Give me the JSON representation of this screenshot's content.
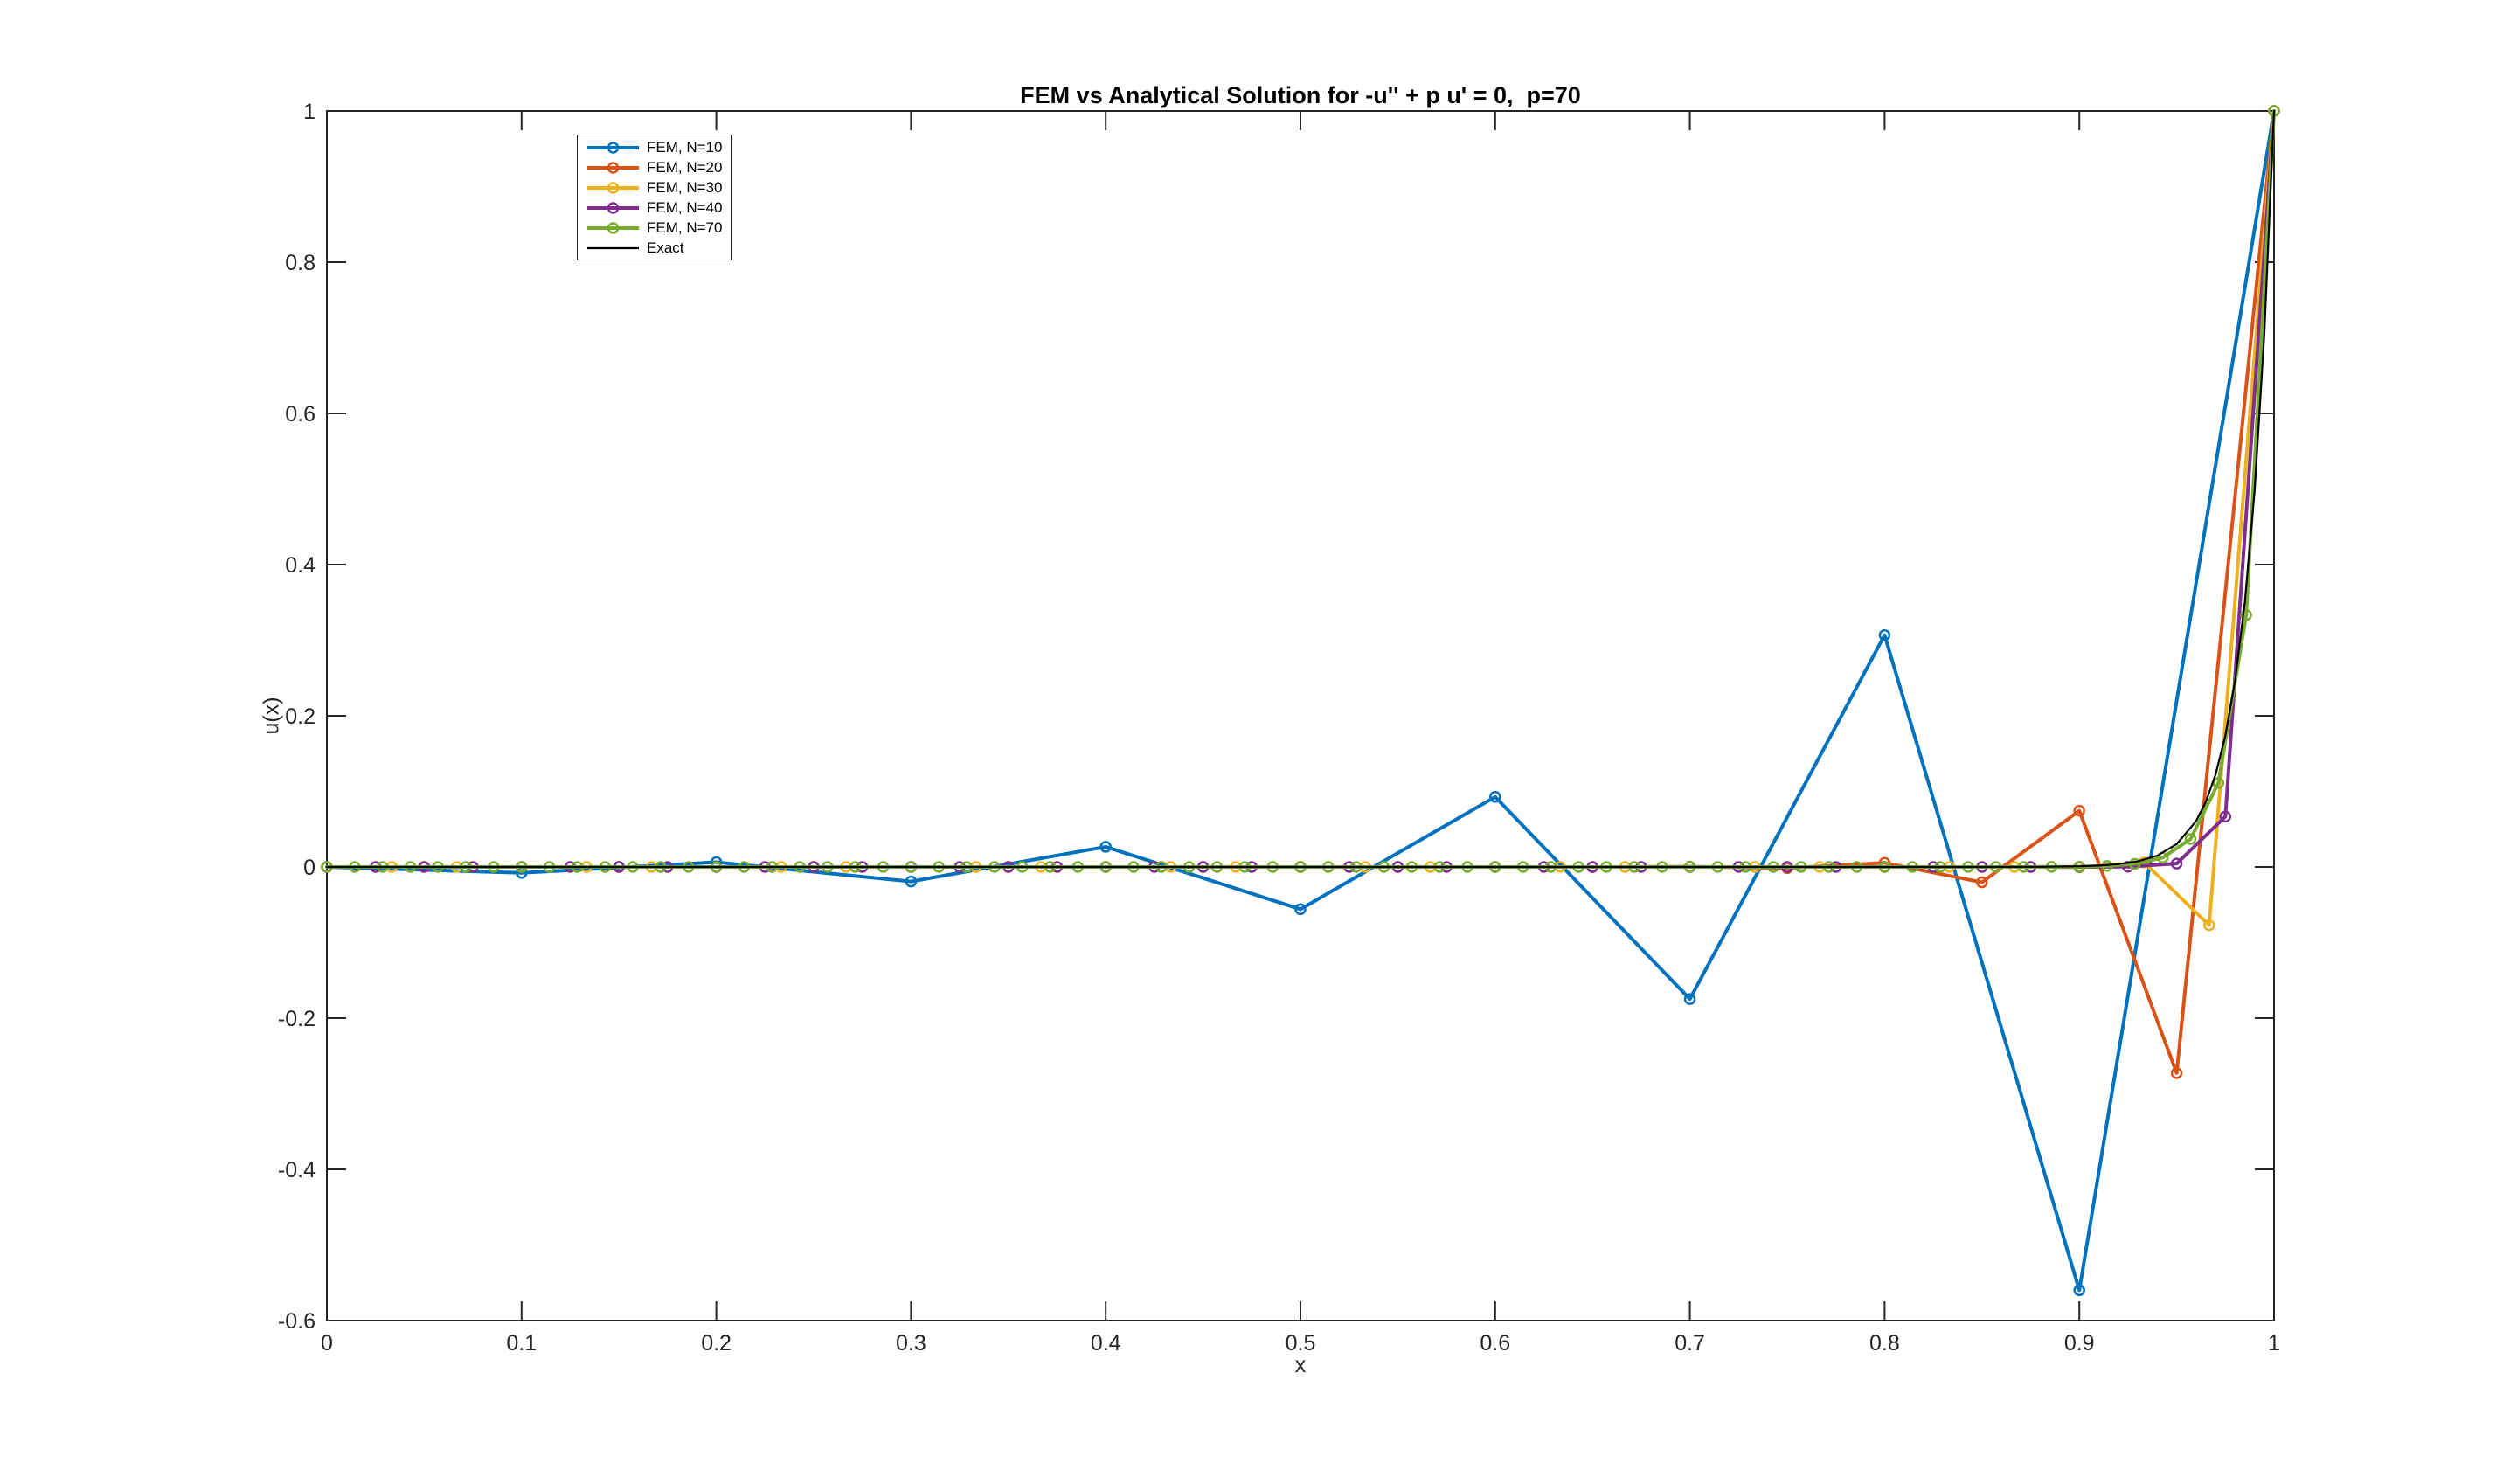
{
  "chart_data": {
    "type": "line",
    "title": "FEM vs Analytical Solution for -u'' + p u' = 0,  p=70",
    "xlabel": "x",
    "ylabel": "u(x)",
    "xlim": [
      0,
      1
    ],
    "ylim": [
      -0.6,
      1
    ],
    "grid": false,
    "legend_position": "northwest-inside",
    "axis_color": "#262626",
    "xticks": {
      "values": [
        0,
        0.1,
        0.2,
        0.3,
        0.4,
        0.5,
        0.6,
        0.7,
        0.8,
        0.9,
        1
      ],
      "labels": [
        "0",
        "0.1",
        "0.2",
        "0.3",
        "0.4",
        "0.5",
        "0.6",
        "0.7",
        "0.8",
        "0.9",
        "1"
      ]
    },
    "yticks": {
      "values": [
        -0.6,
        -0.4,
        -0.2,
        0,
        0.2,
        0.4,
        0.6,
        0.8,
        1
      ],
      "labels": [
        "-0.6",
        "-0.4",
        "-0.2",
        "0",
        "0.2",
        "0.4",
        "0.6",
        "0.8",
        "1"
      ]
    },
    "series": [
      {
        "name": "FEM, N=10",
        "color": "#0072BD",
        "marker": "circle",
        "line_width": 4,
        "x": [
          0,
          0.1,
          0.2,
          0.3,
          0.4,
          0.5,
          0.6,
          0.7,
          0.8,
          0.9,
          1
        ],
        "y": [
          0,
          -0.0078642,
          0.0062913,
          -0.0191885,
          0.0266751,
          -0.0558794,
          0.0927188,
          -0.1747576,
          0.3067002,
          -0.5599247,
          1
        ]
      },
      {
        "name": "FEM, N=20",
        "color": "#D95319",
        "marker": "circle",
        "line_width": 4,
        "x": [
          0,
          0.05,
          0.1,
          0.15,
          0.2,
          0.25,
          0.3,
          0.35,
          0.4,
          0.45,
          0.5,
          0.55,
          0.6,
          0.65,
          0.7,
          0.75,
          0.8,
          0.85,
          0.9,
          0.95,
          1
        ],
        "y": [
          0,
          0,
          0,
          0,
          0,
          0,
          0,
          0,
          0,
          -6e-07,
          2.3e-06,
          -8.3e-06,
          3.06e-05,
          -0.0001122,
          0.0004115,
          -0.0015089,
          0.0055324,
          -0.0202855,
          0.0743802,
          -0.2727273,
          1
        ]
      },
      {
        "name": "FEM, N=30",
        "color": "#EDB120",
        "marker": "circle",
        "line_width": 4,
        "x": [
          0,
          0.03333,
          0.06667,
          0.1,
          0.13333,
          0.16667,
          0.2,
          0.23333,
          0.26667,
          0.3,
          0.33333,
          0.36667,
          0.4,
          0.43333,
          0.46667,
          0.5,
          0.53333,
          0.56667,
          0.6,
          0.63333,
          0.66667,
          0.7,
          0.73333,
          0.76667,
          0.8,
          0.83333,
          0.86667,
          0.9,
          0.93333,
          0.96667,
          1
        ],
        "y": [
          0,
          0,
          0,
          0,
          0,
          0,
          0,
          0,
          0,
          0,
          0,
          0,
          0,
          0,
          0,
          0,
          0,
          0,
          0,
          0,
          0,
          0,
          0,
          0,
          0,
          -2.7e-06,
          3.5e-05,
          -0.0004551,
          0.0059172,
          -0.0769231,
          1
        ]
      },
      {
        "name": "FEM, N=40",
        "color": "#7E2F8E",
        "marker": "circle",
        "line_width": 4,
        "x": [
          0,
          0.025,
          0.05,
          0.075,
          0.1,
          0.125,
          0.15,
          0.175,
          0.2,
          0.225,
          0.25,
          0.275,
          0.3,
          0.325,
          0.35,
          0.375,
          0.4,
          0.425,
          0.45,
          0.475,
          0.5,
          0.525,
          0.55,
          0.575,
          0.6,
          0.625,
          0.65,
          0.675,
          0.7,
          0.725,
          0.75,
          0.775,
          0.8,
          0.825,
          0.85,
          0.875,
          0.9,
          0.925,
          0.95,
          0.975,
          1
        ],
        "y": [
          0,
          0,
          0,
          0,
          0,
          0,
          0,
          0,
          0,
          0,
          0,
          0,
          0,
          0,
          0,
          0,
          0,
          0,
          0,
          0,
          0,
          0,
          0,
          0,
          0,
          0,
          0,
          0,
          0,
          0,
          0,
          0,
          0,
          0,
          0,
          1.3e-06,
          1.98e-05,
          0.0002963,
          0.0044444,
          0.0666667,
          1
        ]
      },
      {
        "name": "FEM, N=70",
        "color": "#77AC30",
        "marker": "circle",
        "line_width": 4,
        "x": [
          0,
          0.01429,
          0.02857,
          0.04286,
          0.05714,
          0.07143,
          0.08571,
          0.1,
          0.11429,
          0.12857,
          0.14286,
          0.15714,
          0.17143,
          0.18571,
          0.2,
          0.21429,
          0.22857,
          0.24286,
          0.25714,
          0.27143,
          0.28571,
          0.3,
          0.31429,
          0.32857,
          0.34286,
          0.35714,
          0.37143,
          0.38571,
          0.4,
          0.41429,
          0.42857,
          0.44286,
          0.45714,
          0.47143,
          0.48571,
          0.5,
          0.51429,
          0.52857,
          0.54286,
          0.55714,
          0.57143,
          0.58571,
          0.6,
          0.61429,
          0.62857,
          0.64286,
          0.65714,
          0.67143,
          0.68571,
          0.7,
          0.71429,
          0.72857,
          0.74286,
          0.75714,
          0.77143,
          0.78571,
          0.8,
          0.81429,
          0.82857,
          0.84286,
          0.85714,
          0.87143,
          0.88571,
          0.9,
          0.91429,
          0.92857,
          0.94286,
          0.95714,
          0.97143,
          0.98571,
          1
        ],
        "y": [
          0,
          0,
          0,
          0,
          0,
          0,
          0,
          0,
          0,
          0,
          0,
          0,
          0,
          0,
          0,
          0,
          0,
          0,
          0,
          0,
          0,
          0,
          0,
          0,
          0,
          0,
          0,
          0,
          0,
          0,
          0,
          0,
          0,
          0,
          0,
          0,
          0,
          0,
          0,
          0,
          0,
          0,
          0,
          0,
          0,
          0,
          0,
          0,
          0,
          0,
          0,
          0,
          0,
          0,
          0,
          0,
          0,
          0,
          1.9e-06,
          5.6e-06,
          1.69e-05,
          5.08e-05,
          0.0001524,
          0.0004572,
          0.0013717,
          0.0041152,
          0.0123457,
          0.037037,
          0.1111111,
          0.3333333,
          1
        ]
      },
      {
        "name": "Exact",
        "color": "#000000",
        "marker": "none",
        "line_width": 2.2,
        "x": [
          0,
          0.1,
          0.2,
          0.3,
          0.4,
          0.5,
          0.6,
          0.7,
          0.75,
          0.8,
          0.82,
          0.84,
          0.86,
          0.88,
          0.9,
          0.91,
          0.92,
          0.93,
          0.94,
          0.95,
          0.96,
          0.965,
          0.97,
          0.975,
          0.98,
          0.985,
          0.99,
          0.995,
          1
        ],
        "y": [
          0,
          0,
          0,
          0,
          0,
          0,
          0,
          0,
          0,
          8e-07,
          3.4e-06,
          1.37e-05,
          5.53e-05,
          0.0002249,
          0.0009119,
          0.0018363,
          0.0036979,
          0.0074466,
          0.0149956,
          0.0301974,
          0.0608101,
          0.0862936,
          0.1224564,
          0.1737739,
          0.246597,
          0.3499377,
          0.4965853,
          0.7046881,
          1
        ]
      }
    ]
  }
}
